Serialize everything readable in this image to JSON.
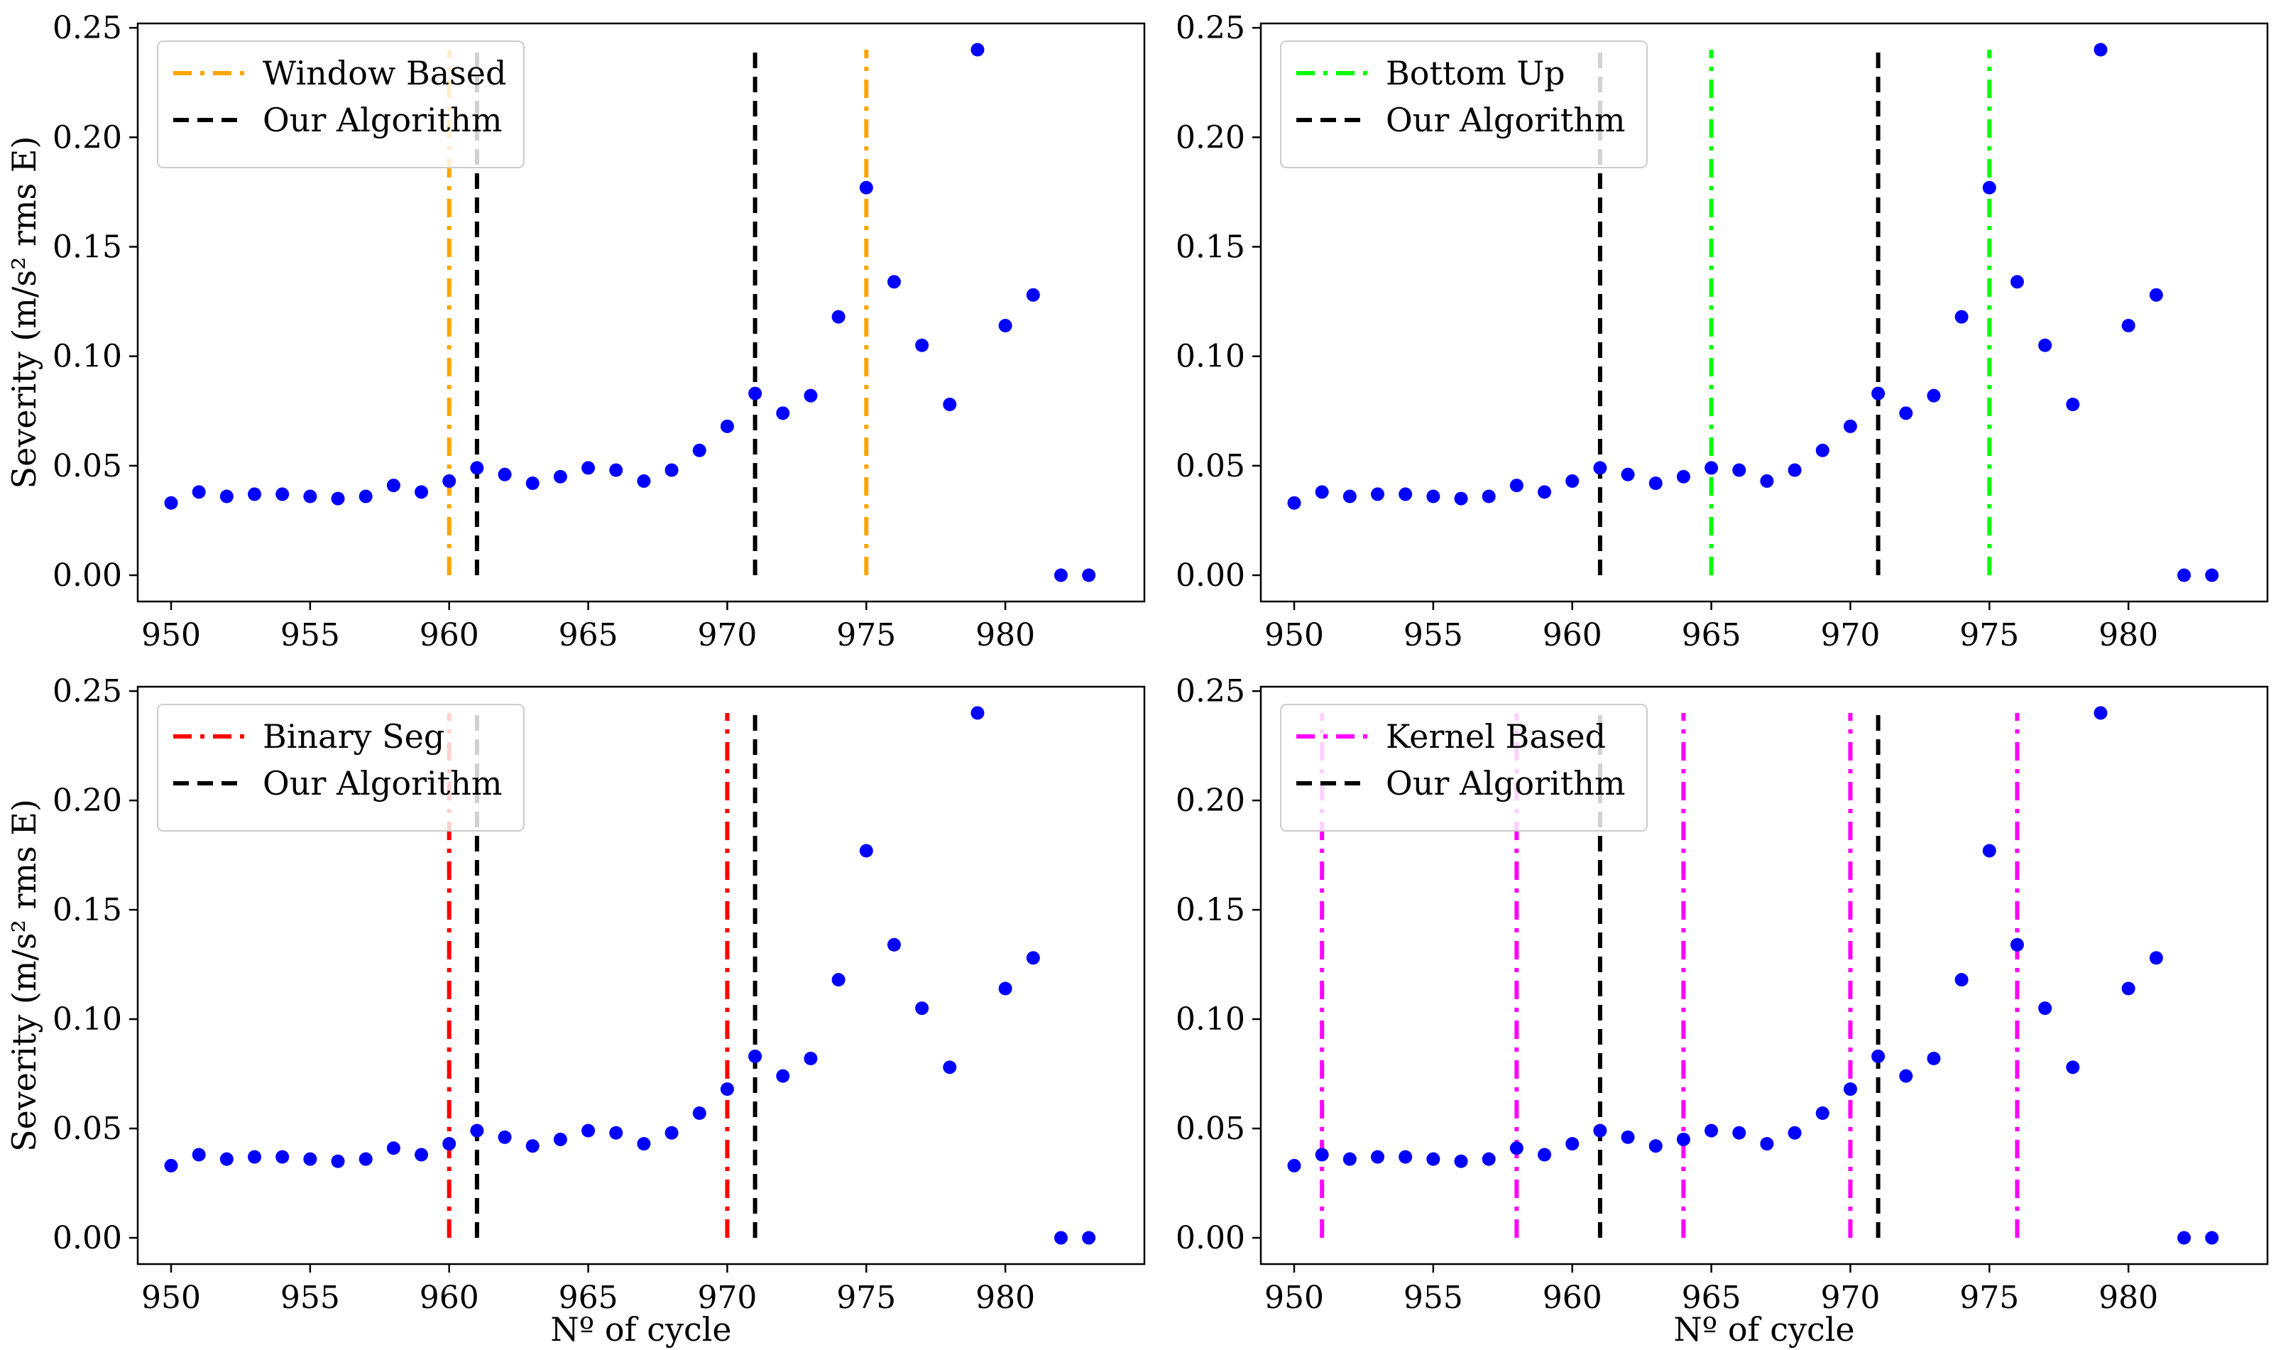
{
  "colors": {
    "points": "#0000ff",
    "our_algorithm": "#000000",
    "window_based": "#ffa500",
    "bottom_up": "#00ff00",
    "binary_seg": "#ff0000",
    "kernel_based": "#ff00ff"
  },
  "chart_data": [
    {
      "type": "scatter",
      "panel": "top-left",
      "xlabel": "",
      "ylabel": "Severity (m/s² rms E)",
      "xlim": [
        948.8,
        985.0
      ],
      "ylim": [
        -0.012,
        0.252
      ],
      "xticks": [
        950,
        955,
        960,
        965,
        970,
        975,
        980
      ],
      "yticks": [
        "0.00",
        "0.05",
        "0.10",
        "0.15",
        "0.20",
        "0.25"
      ],
      "legend_position": "top-left",
      "points": {
        "x": [
          950,
          951,
          952,
          953,
          954,
          955,
          956,
          957,
          958,
          959,
          960,
          961,
          962,
          963,
          964,
          965,
          966,
          967,
          968,
          969,
          970,
          971,
          972,
          973,
          974,
          975,
          976,
          977,
          978,
          979,
          980,
          981,
          982,
          983
        ],
        "y": [
          0.033,
          0.038,
          0.036,
          0.037,
          0.037,
          0.036,
          0.035,
          0.036,
          0.041,
          0.038,
          0.043,
          0.049,
          0.046,
          0.042,
          0.045,
          0.049,
          0.048,
          0.043,
          0.048,
          0.057,
          0.068,
          0.083,
          0.074,
          0.082,
          0.118,
          0.177,
          0.134,
          0.105,
          0.078,
          0.24,
          0.114,
          0.128,
          0.0,
          0.0
        ]
      },
      "lines": [
        {
          "name": "Window Based",
          "style": "dashdot",
          "color_key": "window_based",
          "x": [
            960,
            975
          ]
        },
        {
          "name": "Our Algorithm",
          "style": "dashed",
          "color_key": "our_algorithm",
          "x": [
            961,
            971
          ]
        }
      ]
    },
    {
      "type": "scatter",
      "panel": "top-right",
      "xlabel": "",
      "ylabel": "",
      "xlim": [
        948.8,
        985.0
      ],
      "ylim": [
        -0.012,
        0.252
      ],
      "xticks": [
        950,
        955,
        960,
        965,
        970,
        975,
        980
      ],
      "yticks": [
        "0.00",
        "0.05",
        "0.10",
        "0.15",
        "0.20",
        "0.25"
      ],
      "legend_position": "top-left",
      "points": {
        "x": [
          950,
          951,
          952,
          953,
          954,
          955,
          956,
          957,
          958,
          959,
          960,
          961,
          962,
          963,
          964,
          965,
          966,
          967,
          968,
          969,
          970,
          971,
          972,
          973,
          974,
          975,
          976,
          977,
          978,
          979,
          980,
          981,
          982,
          983
        ],
        "y": [
          0.033,
          0.038,
          0.036,
          0.037,
          0.037,
          0.036,
          0.035,
          0.036,
          0.041,
          0.038,
          0.043,
          0.049,
          0.046,
          0.042,
          0.045,
          0.049,
          0.048,
          0.043,
          0.048,
          0.057,
          0.068,
          0.083,
          0.074,
          0.082,
          0.118,
          0.177,
          0.134,
          0.105,
          0.078,
          0.24,
          0.114,
          0.128,
          0.0,
          0.0
        ]
      },
      "lines": [
        {
          "name": "Bottom Up",
          "style": "dashdot",
          "color_key": "bottom_up",
          "x": [
            965,
            975
          ]
        },
        {
          "name": "Our Algorithm",
          "style": "dashed",
          "color_key": "our_algorithm",
          "x": [
            961,
            971
          ]
        }
      ]
    },
    {
      "type": "scatter",
      "panel": "bottom-left",
      "xlabel": "Nº of cycle",
      "ylabel": "Severity (m/s² rms E)",
      "xlim": [
        948.8,
        985.0
      ],
      "ylim": [
        -0.012,
        0.252
      ],
      "xticks": [
        950,
        955,
        960,
        965,
        970,
        975,
        980
      ],
      "yticks": [
        "0.00",
        "0.05",
        "0.10",
        "0.15",
        "0.20",
        "0.25"
      ],
      "legend_position": "top-left",
      "points": {
        "x": [
          950,
          951,
          952,
          953,
          954,
          955,
          956,
          957,
          958,
          959,
          960,
          961,
          962,
          963,
          964,
          965,
          966,
          967,
          968,
          969,
          970,
          971,
          972,
          973,
          974,
          975,
          976,
          977,
          978,
          979,
          980,
          981,
          982,
          983
        ],
        "y": [
          0.033,
          0.038,
          0.036,
          0.037,
          0.037,
          0.036,
          0.035,
          0.036,
          0.041,
          0.038,
          0.043,
          0.049,
          0.046,
          0.042,
          0.045,
          0.049,
          0.048,
          0.043,
          0.048,
          0.057,
          0.068,
          0.083,
          0.074,
          0.082,
          0.118,
          0.177,
          0.134,
          0.105,
          0.078,
          0.24,
          0.114,
          0.128,
          0.0,
          0.0
        ]
      },
      "lines": [
        {
          "name": "Binary Seg",
          "style": "dashdot",
          "color_key": "binary_seg",
          "x": [
            960,
            970
          ]
        },
        {
          "name": "Our Algorithm",
          "style": "dashed",
          "color_key": "our_algorithm",
          "x": [
            961,
            971
          ]
        }
      ]
    },
    {
      "type": "scatter",
      "panel": "bottom-right",
      "xlabel": "Nº of cycle",
      "ylabel": "",
      "xlim": [
        948.8,
        985.0
      ],
      "ylim": [
        -0.012,
        0.252
      ],
      "xticks": [
        950,
        955,
        960,
        965,
        970,
        975,
        980
      ],
      "yticks": [
        "0.00",
        "0.05",
        "0.10",
        "0.15",
        "0.20",
        "0.25"
      ],
      "legend_position": "top-left",
      "points": {
        "x": [
          950,
          951,
          952,
          953,
          954,
          955,
          956,
          957,
          958,
          959,
          960,
          961,
          962,
          963,
          964,
          965,
          966,
          967,
          968,
          969,
          970,
          971,
          972,
          973,
          974,
          975,
          976,
          977,
          978,
          979,
          980,
          981,
          982,
          983
        ],
        "y": [
          0.033,
          0.038,
          0.036,
          0.037,
          0.037,
          0.036,
          0.035,
          0.036,
          0.041,
          0.038,
          0.043,
          0.049,
          0.046,
          0.042,
          0.045,
          0.049,
          0.048,
          0.043,
          0.048,
          0.057,
          0.068,
          0.083,
          0.074,
          0.082,
          0.118,
          0.177,
          0.134,
          0.105,
          0.078,
          0.24,
          0.114,
          0.128,
          0.0,
          0.0
        ]
      },
      "lines": [
        {
          "name": "Kernel Based",
          "style": "dashdot",
          "color_key": "kernel_based",
          "x": [
            951,
            958,
            964,
            970,
            976
          ]
        },
        {
          "name": "Our Algorithm",
          "style": "dashed",
          "color_key": "our_algorithm",
          "x": [
            961,
            971
          ]
        }
      ]
    }
  ]
}
